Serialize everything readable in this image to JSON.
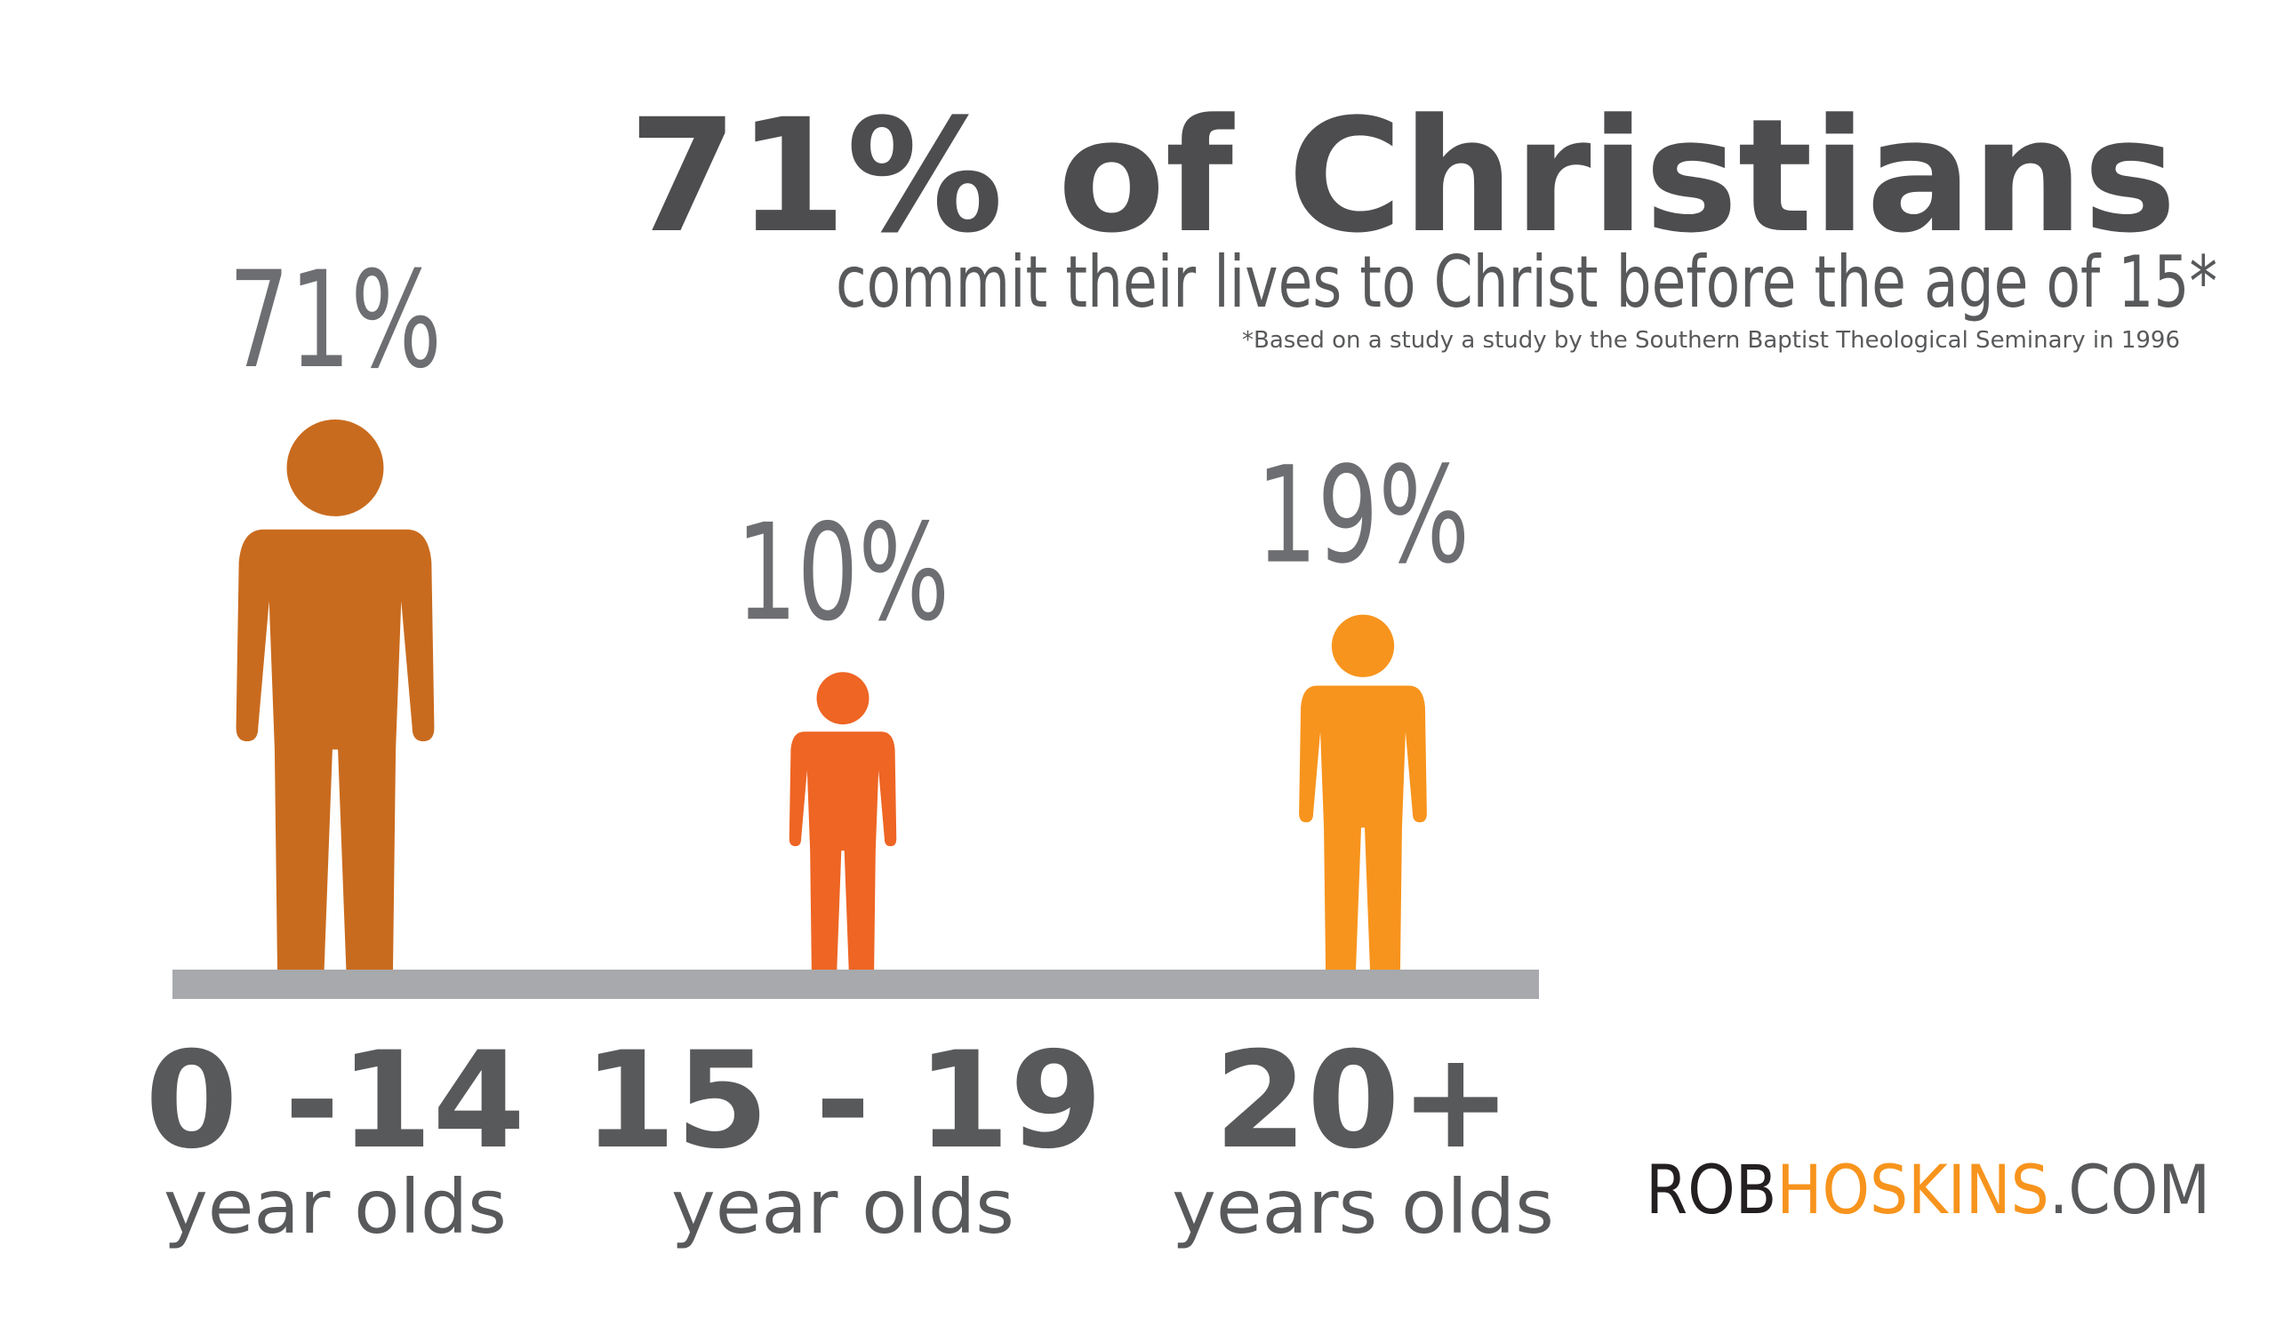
{
  "chart_data": {
    "type": "pictograph",
    "title": "71% of Christians",
    "subtitle": "commit their lives to Christ before the age of 15*",
    "footnote": "*Based on a study a study by the Southern Baptist Theological Seminary in 1996",
    "categories": [
      "0 -14",
      "15 - 19",
      "20+"
    ],
    "category_sublabels": [
      "year olds",
      "year olds",
      "years olds"
    ],
    "values": [
      71,
      10,
      19
    ],
    "value_labels": [
      "71%",
      "10%",
      "19%"
    ],
    "colors": [
      "#c96b1e",
      "#ee6524",
      "#f7941d"
    ]
  },
  "branding": {
    "parts": [
      "ROB",
      "HOSKINS",
      ".COM"
    ]
  }
}
